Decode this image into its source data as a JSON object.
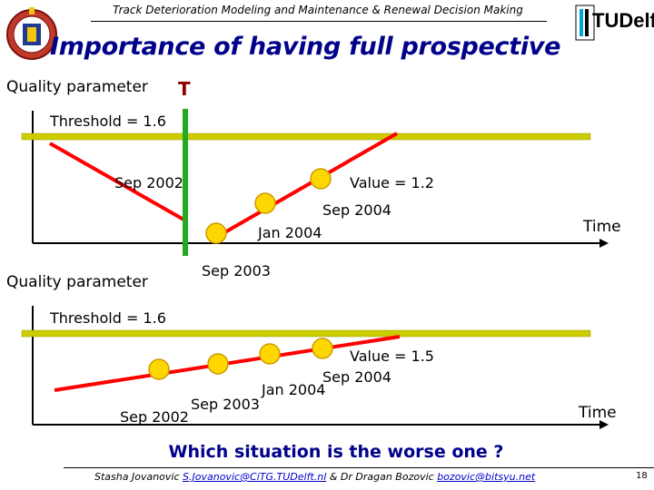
{
  "header": {
    "course_title": "Track Deterioration Modeling and Maintenance & Renewal Decision Making",
    "tudelft_logo_text": "TUDelft"
  },
  "slide": {
    "title": "Importance of having full prospective",
    "question": "Which situation is the worse one ?"
  },
  "diagram_top": {
    "y_axis_label": "Quality parameter",
    "x_axis_label": "Time",
    "inspection_marker_label": "T",
    "threshold_label": "Threshold = 1.6",
    "points": [
      {
        "label": "Sep 2002"
      },
      {
        "label": "Sep 2003"
      },
      {
        "label": "Jan 2004"
      },
      {
        "label": "Sep 2004"
      },
      {
        "label": "Value = 1.2"
      }
    ]
  },
  "diagram_bottom": {
    "y_axis_label": "Quality parameter",
    "x_axis_label": "Time",
    "threshold_label": "Threshold = 1.6",
    "points": [
      {
        "label": "Sep 2002"
      },
      {
        "label": "Sep 2003"
      },
      {
        "label": "Jan 2004"
      },
      {
        "label": "Sep 2004"
      },
      {
        "label": "Value = 1.5"
      }
    ]
  },
  "footer": {
    "author1": "Stasha Jovanovic",
    "email1": "S.Jovanovic@CiTG.TUDelft.nl",
    "connector": "& Dr Dragan Bozovic",
    "email2": "bozovic@bitsyu.net",
    "page_number": "18"
  },
  "colors": {
    "title": "#00008b",
    "threshold_line": "#cccc00",
    "trend_line": "#ff0000",
    "point_fill": "#ffd700",
    "marker_line": "#22aa22",
    "axis": "#000000"
  }
}
